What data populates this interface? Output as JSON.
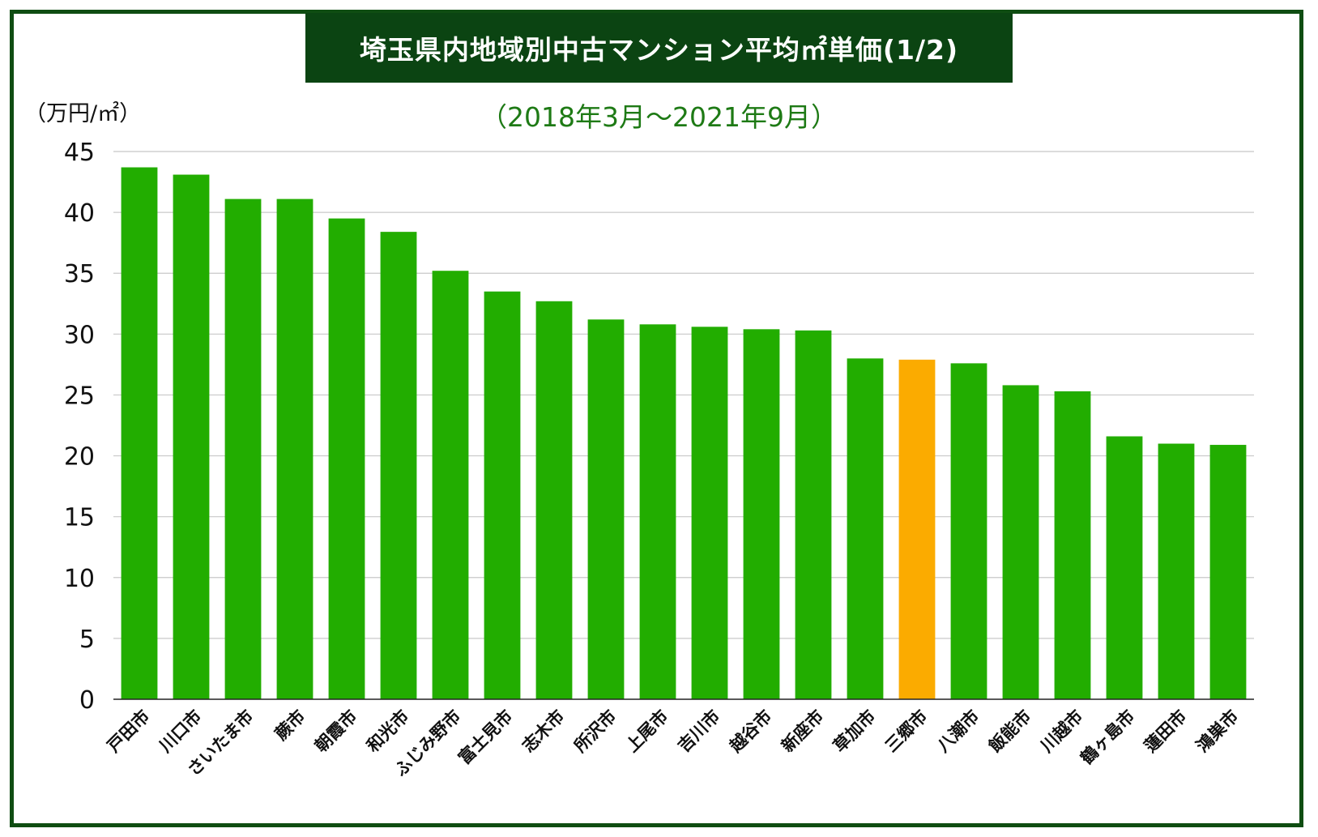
{
  "chart_data": {
    "type": "bar",
    "title": "埼玉県内地域別中古マンション平均㎡単価(1/2)",
    "subtitle": "（2018年3月〜2021年9月）",
    "ylabel": "（万円/㎡）",
    "xlabel": "",
    "ylim": [
      0,
      45
    ],
    "yticks": [
      0,
      5,
      10,
      15,
      20,
      25,
      30,
      35,
      40,
      45
    ],
    "grid": true,
    "categories": [
      "戸田市",
      "川口市",
      "さいたま市",
      "蕨市",
      "朝霞市",
      "和光市",
      "ふじみ野市",
      "富士見市",
      "志木市",
      "所沢市",
      "上尾市",
      "吉川市",
      "越谷市",
      "新座市",
      "草加市",
      "三郷市",
      "八潮市",
      "飯能市",
      "川越市",
      "鶴ヶ島市",
      "蓮田市",
      "鴻巣市"
    ],
    "values": [
      43.7,
      43.1,
      41.1,
      41.1,
      39.5,
      38.4,
      35.2,
      33.5,
      32.7,
      31.2,
      30.8,
      30.6,
      30.4,
      30.3,
      28.0,
      27.9,
      27.6,
      25.8,
      25.3,
      21.6,
      21.0,
      20.9
    ],
    "highlight_category": "三郷市",
    "colors": {
      "bar": "#22ad00",
      "highlight": "#fbab00",
      "grid": "#c8c8c8",
      "axis": "#222222"
    }
  }
}
